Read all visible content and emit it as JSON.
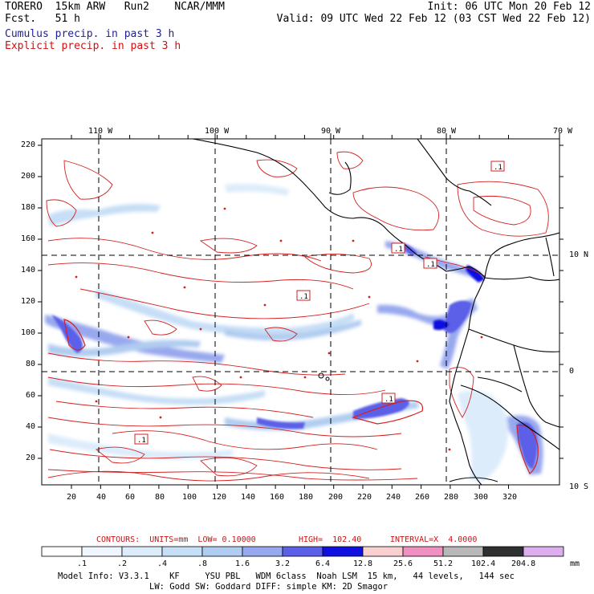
{
  "header": {
    "left1": "TORERO  15km ARW   Run2    NCAR/MMM",
    "left2": "Fcst.   51 h",
    "right1": "Init: 06 UTC Mon 20 Feb 12",
    "right2": "Valid: 09 UTC Wed 22 Feb 12 (03 CST Wed 22 Feb 12)",
    "line3": "Cumulus precip. in past 3 h",
    "line4": "Explicit precip. in past 3 h",
    "line3_color": "#1e1e9e",
    "line4_color": "#d01010"
  },
  "map": {
    "lon_labels": [
      "110 W",
      "100 W",
      "90 W",
      "80 W",
      "70 W"
    ],
    "lat_labels": [
      "10 N",
      "0",
      "10 S"
    ],
    "x_ticks": [
      "20",
      "40",
      "60",
      "80",
      "100",
      "120",
      "140",
      "160",
      "180",
      "200",
      "220",
      "240",
      "260",
      "280",
      "300",
      "320"
    ],
    "y_ticks": [
      "220",
      "200",
      "180",
      "160",
      "140",
      "120",
      "100",
      "80",
      "60",
      "40",
      "20"
    ],
    "box_labels": [
      ".1",
      ".1",
      ".1",
      ".1",
      ".1",
      ".1"
    ]
  },
  "contour_info": {
    "contours": "CONTOURS:  UNITS=mm  LOW= 0.10000",
    "high": "HIGH=  102.40",
    "interval": "INTERVAL=X  4.0000",
    "color": "#d01010"
  },
  "colorbar": {
    "labels": [
      ".1",
      ".2",
      ".4",
      ".8",
      "1.6",
      "3.2",
      "6.4",
      "12.8",
      "25.6",
      "51.2",
      "102.4",
      "204.8"
    ],
    "units": "mm",
    "colors": [
      "#ffffff",
      "#f0f6ff",
      "#ddecfb",
      "#c6def6",
      "#b0ccf0",
      "#98a8ee",
      "#5c5fe8",
      "#1010e0",
      "#f8d0d0",
      "#f090c0",
      "#b8b8b8",
      "#303030",
      "#dcaef0"
    ]
  },
  "footer": {
    "line1": "Model Info: V3.3.1    KF     YSU PBL   WDM 6class  Noah LSM  15 km,   44 levels,   144 sec",
    "line2": "LW: Godd SW: Goddard DIFF: simple KM: 2D Smagor"
  }
}
